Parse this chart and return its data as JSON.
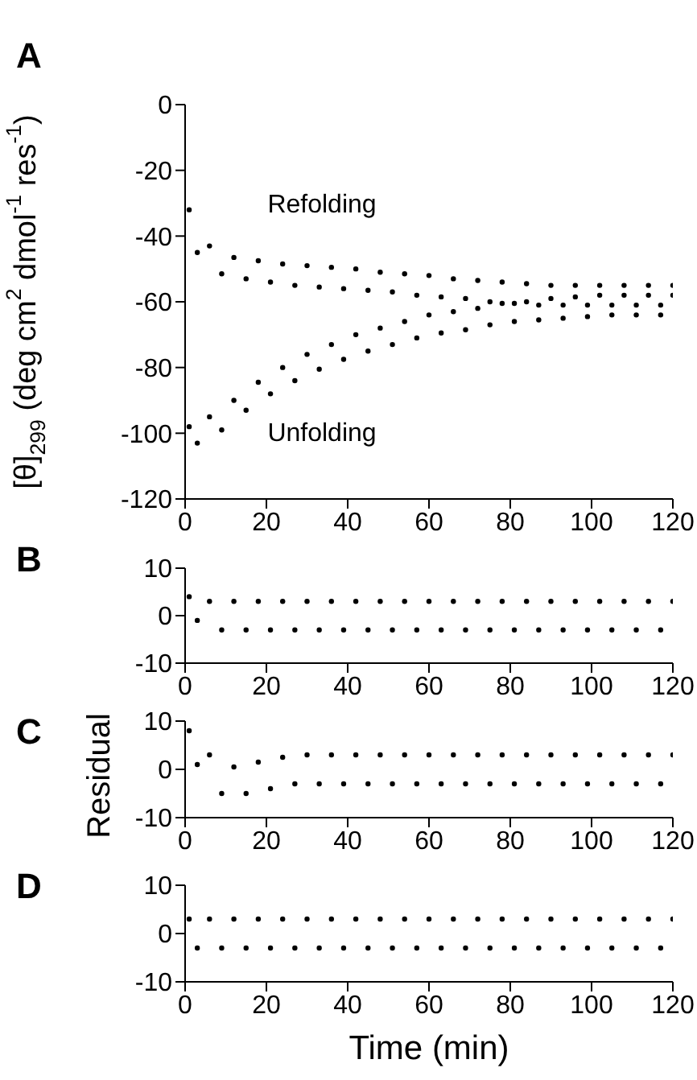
{
  "chart_data": [
    {
      "type": "scatter",
      "title": "A",
      "ylabel": "[θ]$_{299}$ (deg cm$^{2}$ dmol$^{-1}$ res$^{-1}$)",
      "x": [
        1,
        3,
        6,
        9,
        12,
        15,
        18,
        21,
        24,
        27,
        30,
        33,
        36,
        39,
        42,
        45,
        48,
        51,
        54,
        57,
        60,
        63,
        66,
        69,
        72,
        75,
        78,
        81,
        84,
        87,
        90,
        93,
        96,
        99,
        102,
        105,
        108,
        111,
        114,
        117,
        120
      ],
      "series": [
        {
          "color": "#000000",
          "values": [
            -32,
            -45,
            -43,
            -51.5,
            -46.5,
            -53,
            -47.5,
            -54,
            -48.5,
            -55,
            -49,
            -55.5,
            -49.5,
            -56,
            -50,
            -56.5,
            -51,
            -57,
            -51.5,
            -58,
            -52,
            -58.5,
            -53,
            -59,
            -53.5,
            -60,
            -54,
            -60.5,
            -54.5,
            -61,
            -55,
            -61,
            -55,
            -61,
            -55,
            -61,
            -55,
            -61,
            -55,
            -61,
            -55
          ]
        },
        {
          "color": "#000000",
          "values": [
            -98,
            -103,
            -95,
            -99,
            -90,
            -93,
            -84.5,
            -88,
            -80,
            -84,
            -76,
            -80.5,
            -73,
            -77.5,
            -70,
            -75,
            -68,
            -73,
            -66,
            -71,
            -64,
            -69.5,
            -63,
            -68.5,
            -62,
            -67,
            -60.5,
            -66,
            -60,
            -65.5,
            -59,
            -65,
            -58.5,
            -64.5,
            -58,
            -64,
            -58,
            -64,
            -58,
            -64,
            -58
          ]
        }
      ],
      "annotations": [
        "Refolding",
        "Unfolding"
      ],
      "xlim": [
        0,
        120
      ],
      "xticks": [
        0,
        20,
        40,
        60,
        80,
        100,
        120
      ],
      "ylim": [
        -120,
        0
      ],
      "yticks": [
        -120,
        -100,
        -80,
        -60,
        -40,
        -20,
        0
      ],
      "marker": "circle"
    },
    {
      "type": "scatter",
      "title": "B",
      "x": [
        1,
        3,
        6,
        9,
        12,
        15,
        18,
        21,
        24,
        27,
        30,
        33,
        36,
        39,
        42,
        45,
        48,
        51,
        54,
        57,
        60,
        63,
        66,
        69,
        72,
        75,
        78,
        81,
        84,
        87,
        90,
        93,
        96,
        99,
        102,
        105,
        108,
        111,
        114,
        117,
        120
      ],
      "series": [
        {
          "color": "#000000",
          "values": [
            4,
            -1,
            3,
            -3,
            3,
            -3,
            3,
            -3,
            3,
            -3,
            3,
            -3,
            3,
            -3,
            3,
            -3,
            3,
            -3,
            3,
            -3,
            3,
            -3,
            3,
            -3,
            3,
            -3,
            3,
            -3,
            3,
            -3,
            3,
            -3,
            3,
            -3,
            3,
            -3,
            3,
            -3,
            3,
            -3,
            3
          ]
        }
      ],
      "xlim": [
        0,
        120
      ],
      "xticks": [
        0,
        20,
        40,
        60,
        80,
        100,
        120
      ],
      "ylim": [
        -10,
        10
      ],
      "yticks": [
        -10,
        0,
        10
      ],
      "marker": "circle"
    },
    {
      "type": "scatter",
      "title": "C",
      "ylabel": "Residual",
      "x": [
        1,
        3,
        6,
        9,
        12,
        15,
        18,
        21,
        24,
        27,
        30,
        33,
        36,
        39,
        42,
        45,
        48,
        51,
        54,
        57,
        60,
        63,
        66,
        69,
        72,
        75,
        78,
        81,
        84,
        87,
        90,
        93,
        96,
        99,
        102,
        105,
        108,
        111,
        114,
        117,
        120
      ],
      "series": [
        {
          "color": "#000000",
          "values": [
            8,
            1,
            3,
            -5,
            0.5,
            -5,
            1.5,
            -4,
            2.5,
            -3,
            3,
            -3,
            3,
            -3,
            3,
            -3,
            3,
            -3,
            3,
            -3,
            3,
            -3,
            3,
            -3,
            3,
            -3,
            3,
            -3,
            3,
            -3,
            3,
            -3,
            3,
            -3,
            3,
            -3,
            3,
            -3,
            3,
            -3,
            3
          ]
        }
      ],
      "xlim": [
        0,
        120
      ],
      "xticks": [
        0,
        20,
        40,
        60,
        80,
        100,
        120
      ],
      "ylim": [
        -10,
        10
      ],
      "yticks": [
        -10,
        0,
        10
      ],
      "marker": "circle"
    },
    {
      "type": "scatter",
      "title": "D",
      "xlabel": "Time (min)",
      "x": [
        1,
        3,
        6,
        9,
        12,
        15,
        18,
        21,
        24,
        27,
        30,
        33,
        36,
        39,
        42,
        45,
        48,
        51,
        54,
        57,
        60,
        63,
        66,
        69,
        72,
        75,
        78,
        81,
        84,
        87,
        90,
        93,
        96,
        99,
        102,
        105,
        108,
        111,
        114,
        117,
        120
      ],
      "series": [
        {
          "color": "#000000",
          "values": [
            3,
            -3,
            3,
            -3,
            3,
            -3,
            3,
            -3,
            3,
            -3,
            3,
            -3,
            3,
            -3,
            3,
            -3,
            3,
            -3,
            3,
            -3,
            3,
            -3,
            3,
            -3,
            3,
            -3,
            3,
            -3,
            3,
            -3,
            3,
            -3,
            3,
            -3,
            3,
            -3,
            3,
            -3,
            3,
            -3,
            3
          ]
        }
      ],
      "xlim": [
        0,
        120
      ],
      "xticks": [
        0,
        20,
        40,
        60,
        80,
        100,
        120
      ],
      "ylim": [
        -10,
        10
      ],
      "yticks": [
        -10,
        0,
        10
      ],
      "marker": "circle"
    }
  ]
}
